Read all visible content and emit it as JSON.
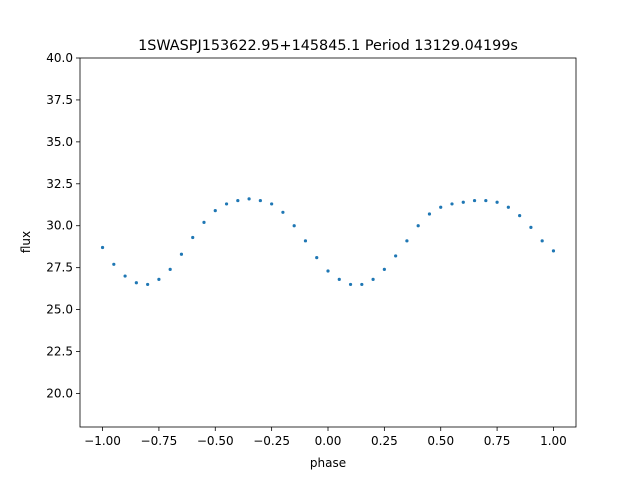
{
  "chart_data": {
    "type": "scatter",
    "title": "1SWASPJ153622.95+145845.1 Period 13129.04199s",
    "xlabel": "phase",
    "ylabel": "flux",
    "xlim": [
      -1.1,
      1.1
    ],
    "ylim": [
      18.0,
      40.0
    ],
    "grid": false,
    "legend": "none",
    "marker_color": "#1f77b4",
    "x_ticks": [
      -1.0,
      -0.75,
      -0.5,
      -0.25,
      0.0,
      0.25,
      0.5,
      0.75,
      1.0
    ],
    "x_tick_labels": [
      "−1.00",
      "−0.75",
      "−0.50",
      "−0.25",
      "0.00",
      "0.25",
      "0.50",
      "0.75",
      "1.00"
    ],
    "y_ticks": [
      20.0,
      22.5,
      25.0,
      27.5,
      30.0,
      32.5,
      35.0,
      37.5,
      40.0
    ],
    "y_tick_labels": [
      "20.0",
      "22.5",
      "25.0",
      "27.5",
      "30.0",
      "32.5",
      "35.0",
      "37.5",
      "40.0"
    ],
    "series": [
      {
        "x": [
          -1.0,
          -0.95,
          -0.9,
          -0.85,
          -0.8,
          -0.75,
          -0.7,
          -0.65,
          -0.6,
          -0.55,
          -0.5,
          -0.45,
          -0.4,
          -0.35,
          -0.3,
          -0.25,
          -0.2,
          -0.15,
          -0.1,
          -0.05,
          0.0,
          0.05,
          0.1,
          0.15,
          0.2,
          0.25,
          0.3,
          0.35,
          0.4,
          0.45,
          0.5,
          0.55,
          0.6,
          0.65,
          0.7,
          0.75,
          0.8,
          0.85,
          0.9,
          0.95,
          1.0
        ],
        "y": [
          28.7,
          27.7,
          27.0,
          26.6,
          26.5,
          26.8,
          27.4,
          28.3,
          29.3,
          30.2,
          30.9,
          31.3,
          31.5,
          31.6,
          31.5,
          31.3,
          30.8,
          30.0,
          29.1,
          28.1,
          27.3,
          26.8,
          26.5,
          26.5,
          26.8,
          27.4,
          28.2,
          29.1,
          30.0,
          30.7,
          31.1,
          31.3,
          31.4,
          31.5,
          31.5,
          31.4,
          31.1,
          30.6,
          29.9,
          29.1,
          28.5
        ]
      }
    ]
  }
}
